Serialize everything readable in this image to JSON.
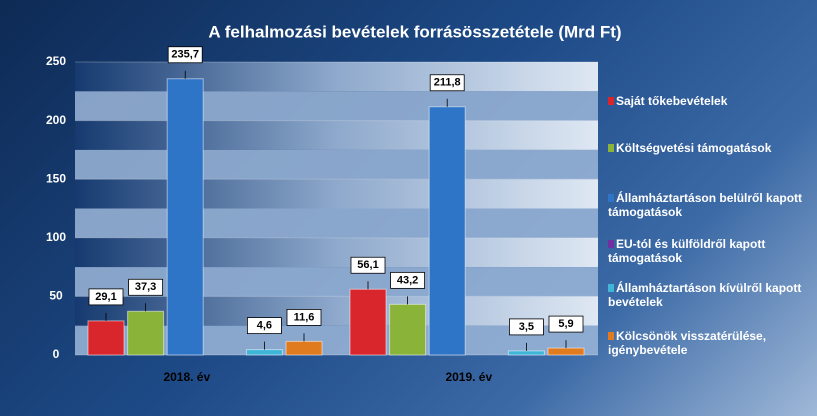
{
  "chart_data": {
    "type": "bar",
    "title": "A felhalmozási bevételek forrásösszetétele (Mrd Ft)",
    "categories": [
      "2018. év",
      "2019. év"
    ],
    "ylim": [
      0,
      250
    ],
    "yticks": [
      0,
      50,
      100,
      150,
      200,
      250
    ],
    "series": [
      {
        "name": "Saját tőkebevételek",
        "color": "#d9262c",
        "values": [
          29.1,
          56.1
        ],
        "value_labels": [
          "29,1",
          "56,1"
        ]
      },
      {
        "name": "Költségvetési támogatások",
        "color": "#8ab33a",
        "values": [
          37.3,
          43.2
        ],
        "value_labels": [
          "37,3",
          "43,2"
        ]
      },
      {
        "name": "Államháztartáson belülről kapott támogatások",
        "color": "#2e75c8",
        "values": [
          235.7,
          211.8
        ],
        "value_labels": [
          "235,7",
          "211,8"
        ]
      },
      {
        "name": "EU-tól és külföldről kapott támogatások",
        "color": "#7030a0",
        "values": [
          0,
          0
        ]
      },
      {
        "name": "Államháztartáson kívülről kapott bevételek",
        "color": "#3fb6d8",
        "values": [
          4.6,
          3.5
        ],
        "value_labels": [
          "4,6",
          "3,5"
        ]
      },
      {
        "name": "Kölcsönök visszatérülése, igénybevétele",
        "color": "#e07b1f",
        "values": [
          11.6,
          5.9
        ],
        "value_labels": [
          "11,6",
          "5,9"
        ]
      }
    ]
  }
}
